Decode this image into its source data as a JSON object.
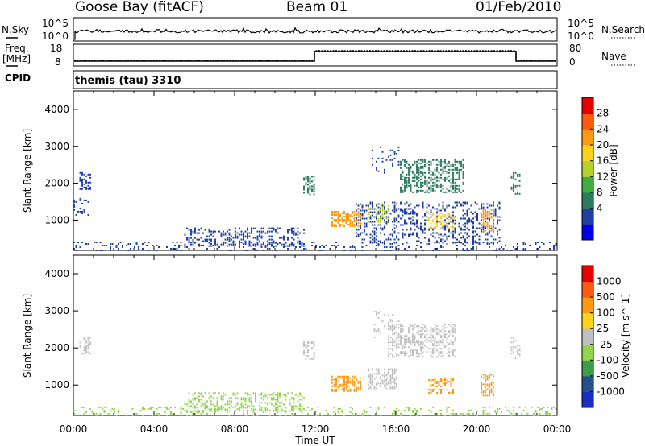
{
  "header": {
    "station": "Goose Bay (fitACF)",
    "beam": "Beam 01",
    "date": "01/Feb/2010"
  },
  "left_labels": {
    "nsky": "N.Sky",
    "freq": "Freq.",
    "mhz": "[MHz]",
    "cpid": "CPID"
  },
  "right_labels": {
    "nsearch": "N.Search",
    "nave": "Nave"
  },
  "cpid_name": "themis (tau) 3310",
  "noise_axis": {
    "top": "10^5",
    "bottom": "10^0"
  },
  "freq_axis": {
    "left_ticks": [
      "18",
      "8"
    ],
    "right_ticks": [
      "80",
      "0"
    ]
  },
  "colorbars": {
    "power": {
      "label": "Power [dB]",
      "ticks": [
        "28",
        "24",
        "20",
        "16",
        "12",
        "8",
        "4"
      ],
      "colors": [
        "#0000e6",
        "#1f3fa6",
        "#2a7a5e",
        "#3fae3f",
        "#b6d12a",
        "#ffd21e",
        "#ff9a10",
        "#ff5a10",
        "#e60000"
      ]
    },
    "velocity": {
      "label": "Velocity [m s^-1]",
      "ticks": [
        "1000",
        "500",
        "100",
        "25",
        "-25",
        "-100",
        "-500",
        "-1000"
      ],
      "colors": [
        "#e60000",
        "#ff5a10",
        "#ff9a10",
        "#ffd21e",
        "#c0c0c0",
        "#8fd64a",
        "#3e9b4a",
        "#24508e",
        "#1a2ec4"
      ]
    }
  },
  "chart_data": [
    {
      "type": "heatmap",
      "title": "Power",
      "ylabel": "Slant Range [km]",
      "xlabel": "Time UT",
      "y_ticks": [
        1000,
        2000,
        3000,
        4000
      ],
      "x_ticks": [
        "00:00",
        "04:00",
        "08:00",
        "12:00",
        "16:00",
        "20:00",
        "00:00"
      ],
      "ylim": [
        180,
        4500
      ],
      "xlim_hours": [
        0,
        24
      ],
      "regions": [
        {
          "t0": 0.3,
          "t1": 0.9,
          "r0": 1850,
          "r1": 2300,
          "color": "#1f3fa6",
          "density": 0.4
        },
        {
          "t0": 0.0,
          "t1": 0.8,
          "r0": 1150,
          "r1": 1600,
          "color": "#1f3fa6",
          "density": 0.25
        },
        {
          "t0": 0.0,
          "t1": 24.0,
          "r0": 200,
          "r1": 420,
          "color": "#1f3fa6",
          "density": 0.18
        },
        {
          "t0": 5.5,
          "t1": 11.5,
          "r0": 300,
          "r1": 800,
          "color": "#1f3fa6",
          "density": 0.35
        },
        {
          "t0": 11.4,
          "t1": 12.0,
          "r0": 1700,
          "r1": 2200,
          "color": "#2a7a5e",
          "density": 0.5
        },
        {
          "t0": 12.8,
          "t1": 14.3,
          "r0": 850,
          "r1": 1250,
          "color": "#ff9a10",
          "density": 0.6
        },
        {
          "t0": 14.6,
          "t1": 15.6,
          "r0": 950,
          "r1": 1450,
          "color": "#b6d12a",
          "density": 0.45
        },
        {
          "t0": 14.0,
          "t1": 21.2,
          "r0": 400,
          "r1": 1500,
          "color": "#1f3fa6",
          "density": 0.3
        },
        {
          "t0": 16.2,
          "t1": 19.4,
          "r0": 1750,
          "r1": 2650,
          "color": "#2a7a5e",
          "density": 0.45
        },
        {
          "t0": 14.8,
          "t1": 16.2,
          "r0": 2300,
          "r1": 3000,
          "color": "#1f3fa6",
          "density": 0.18
        },
        {
          "t0": 17.6,
          "t1": 18.9,
          "r0": 800,
          "r1": 1200,
          "color": "#ffd21e",
          "density": 0.5
        },
        {
          "t0": 20.2,
          "t1": 20.9,
          "r0": 700,
          "r1": 1300,
          "color": "#ff9a10",
          "density": 0.5
        },
        {
          "t0": 21.7,
          "t1": 22.2,
          "r0": 1700,
          "r1": 2300,
          "color": "#2a7a5e",
          "density": 0.35
        }
      ]
    },
    {
      "type": "heatmap",
      "title": "Velocity",
      "ylabel": "Slant Range [km]",
      "xlabel": "Time UT",
      "y_ticks": [
        1000,
        2000,
        3000,
        4000
      ],
      "x_ticks": [
        "00:00",
        "04:00",
        "08:00",
        "12:00",
        "16:00",
        "20:00",
        "00:00"
      ],
      "ylim": [
        180,
        4500
      ],
      "xlim_hours": [
        0,
        24
      ],
      "regions": [
        {
          "t0": 0.3,
          "t1": 0.9,
          "r0": 1850,
          "r1": 2300,
          "color": "#c0c0c0",
          "density": 0.4
        },
        {
          "t0": 0.0,
          "t1": 24.0,
          "r0": 200,
          "r1": 420,
          "color": "#8fd64a",
          "density": 0.18
        },
        {
          "t0": 5.5,
          "t1": 11.5,
          "r0": 300,
          "r1": 800,
          "color": "#8fd64a",
          "density": 0.35
        },
        {
          "t0": 11.4,
          "t1": 12.0,
          "r0": 1700,
          "r1": 2200,
          "color": "#c0c0c0",
          "density": 0.45
        },
        {
          "t0": 12.8,
          "t1": 14.3,
          "r0": 850,
          "r1": 1250,
          "color": "#ff9a10",
          "density": 0.6
        },
        {
          "t0": 14.6,
          "t1": 16.0,
          "r0": 900,
          "r1": 1450,
          "color": "#c0c0c0",
          "density": 0.5
        },
        {
          "t0": 15.6,
          "t1": 19.0,
          "r0": 1750,
          "r1": 2650,
          "color": "#c0c0c0",
          "density": 0.45
        },
        {
          "t0": 14.8,
          "t1": 16.2,
          "r0": 2300,
          "r1": 3000,
          "color": "#c0c0c0",
          "density": 0.2
        },
        {
          "t0": 17.6,
          "t1": 18.9,
          "r0": 800,
          "r1": 1200,
          "color": "#ff9a10",
          "density": 0.45
        },
        {
          "t0": 20.2,
          "t1": 20.9,
          "r0": 700,
          "r1": 1300,
          "color": "#ff9a10",
          "density": 0.5
        },
        {
          "t0": 21.7,
          "t1": 22.2,
          "r0": 1700,
          "r1": 2300,
          "color": "#c0c0c0",
          "density": 0.35
        }
      ]
    }
  ]
}
